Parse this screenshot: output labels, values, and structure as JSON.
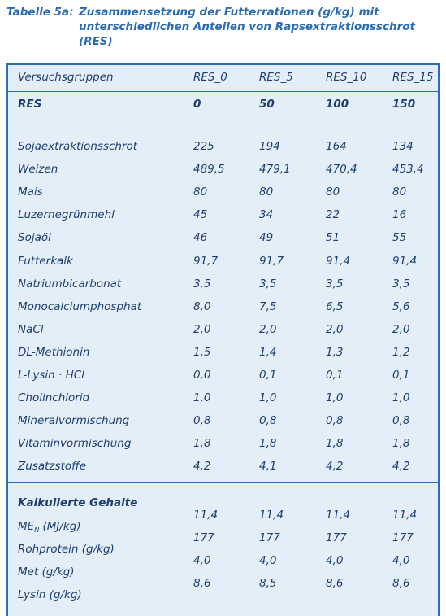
{
  "caption": {
    "label": "Tabelle 5a:",
    "title": "Zusammensetzung der Futterrationen (g/kg) mit unterschiedlichen Anteilen von Rapsextraktionsschrot (RES)"
  },
  "columns": [
    "Versuchsgruppen",
    "RES_0",
    "RES_5",
    "RES_10",
    "RES_15"
  ],
  "res_row": {
    "label": "RES",
    "values": [
      "0",
      "50",
      "100",
      "150"
    ]
  },
  "rows": [
    {
      "label": "Sojaextraktionsschrot",
      "values": [
        "225",
        "194",
        "164",
        "134"
      ]
    },
    {
      "label": "Weizen",
      "values": [
        "489,5",
        "479,1",
        "470,4",
        "453,4"
      ]
    },
    {
      "label": "Mais",
      "values": [
        "80",
        "80",
        "80",
        "80"
      ]
    },
    {
      "label": "Luzernegrünmehl",
      "values": [
        "45",
        "34",
        "22",
        "16"
      ]
    },
    {
      "label": "Sojaöl",
      "values": [
        "46",
        "49",
        "51",
        "55"
      ]
    },
    {
      "label": "Futterkalk",
      "values": [
        "91,7",
        "91,7",
        "91,4",
        "91,4"
      ]
    },
    {
      "label": "Natriumbicarbonat",
      "values": [
        "3,5",
        "3,5",
        "3,5",
        "3,5"
      ]
    },
    {
      "label": "Monocalciumphosphat",
      "values": [
        "8,0",
        "7,5",
        "6,5",
        "5,6"
      ]
    },
    {
      "label": "NaCl",
      "values": [
        "2,0",
        "2,0",
        "2,0",
        "2,0"
      ]
    },
    {
      "label": "DL-Methionin",
      "values": [
        "1,5",
        "1,4",
        "1,3",
        "1,2"
      ]
    },
    {
      "label": "L-Lysin · HCl",
      "values": [
        "0,0",
        "0,1",
        "0,1",
        "0,1"
      ]
    },
    {
      "label": "Cholinchlorid",
      "values": [
        "1,0",
        "1,0",
        "1,0",
        "1,0"
      ]
    },
    {
      "label": "Mineralvormischung",
      "values": [
        "0,8",
        "0,8",
        "0,8",
        "0,8"
      ]
    },
    {
      "label": "Vitaminvormischung",
      "values": [
        "1,8",
        "1,8",
        "1,8",
        "1,8"
      ]
    },
    {
      "label": "Zusatzstoffe",
      "values": [
        "4,2",
        "4,1",
        "4,2",
        "4,2"
      ]
    }
  ],
  "calc": {
    "heading": "Kalkulierte Gehalte",
    "labels": [
      {
        "main": "ME",
        "sub": "N",
        "rest": " (MJ/kg)"
      },
      {
        "main": "Rohprotein (g/kg)",
        "sub": "",
        "rest": ""
      },
      {
        "main": "Met (g/kg)",
        "sub": "",
        "rest": ""
      },
      {
        "main": "Lysin (g/kg)",
        "sub": "",
        "rest": ""
      }
    ],
    "rows": [
      [
        "11,4",
        "11,4",
        "11,4",
        "11,4"
      ],
      [
        "177",
        "177",
        "177",
        "177"
      ],
      [
        "4,0",
        "4,0",
        "4,0",
        "4,0"
      ],
      [
        "8,6",
        "8,5",
        "8,6",
        "8,6"
      ]
    ]
  }
}
